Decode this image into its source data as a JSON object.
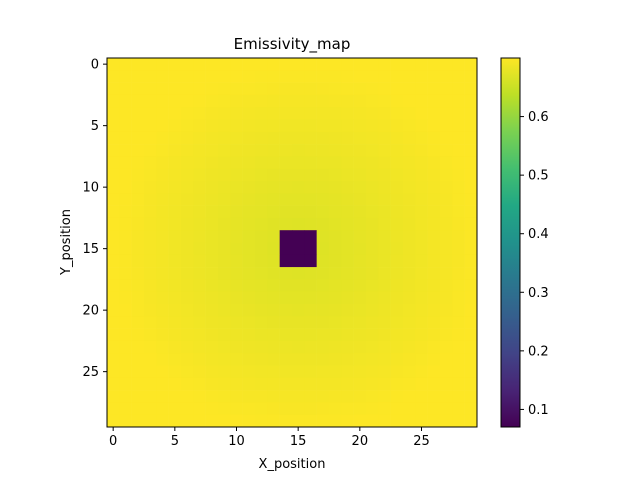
{
  "chart_data": {
    "type": "heatmap",
    "title": "Emissivity_map",
    "xlabel": "X_position",
    "ylabel": "Y_position",
    "grid_size": [
      30,
      30
    ],
    "xlim": [
      -0.5,
      29.5
    ],
    "ylim": [
      29.5,
      -0.5
    ],
    "x_ticks": [
      0,
      5,
      10,
      15,
      20,
      25
    ],
    "x_tick_labels": [
      "0",
      "5",
      "10",
      "15",
      "20",
      "25"
    ],
    "y_ticks": [
      0,
      5,
      10,
      15,
      20,
      25
    ],
    "y_tick_labels": [
      "0",
      "5",
      "10",
      "15",
      "20",
      "25"
    ],
    "colormap": "viridis",
    "value_range": [
      0.07,
      0.7
    ],
    "colorbar_ticks": [
      0.1,
      0.2,
      0.3,
      0.4,
      0.5,
      0.6
    ],
    "colorbar_tick_labels": [
      "0.1",
      "0.2",
      "0.3",
      "0.4",
      "0.5",
      "0.6"
    ],
    "field": {
      "description_type": "radial",
      "center": [
        15,
        15
      ],
      "edge_value": 0.7,
      "center_value": 0.665,
      "falloff_radius": 15
    },
    "anomaly": {
      "x_range": [
        14,
        16
      ],
      "y_range": [
        14,
        16
      ],
      "value": 0.07
    },
    "grid": false
  }
}
